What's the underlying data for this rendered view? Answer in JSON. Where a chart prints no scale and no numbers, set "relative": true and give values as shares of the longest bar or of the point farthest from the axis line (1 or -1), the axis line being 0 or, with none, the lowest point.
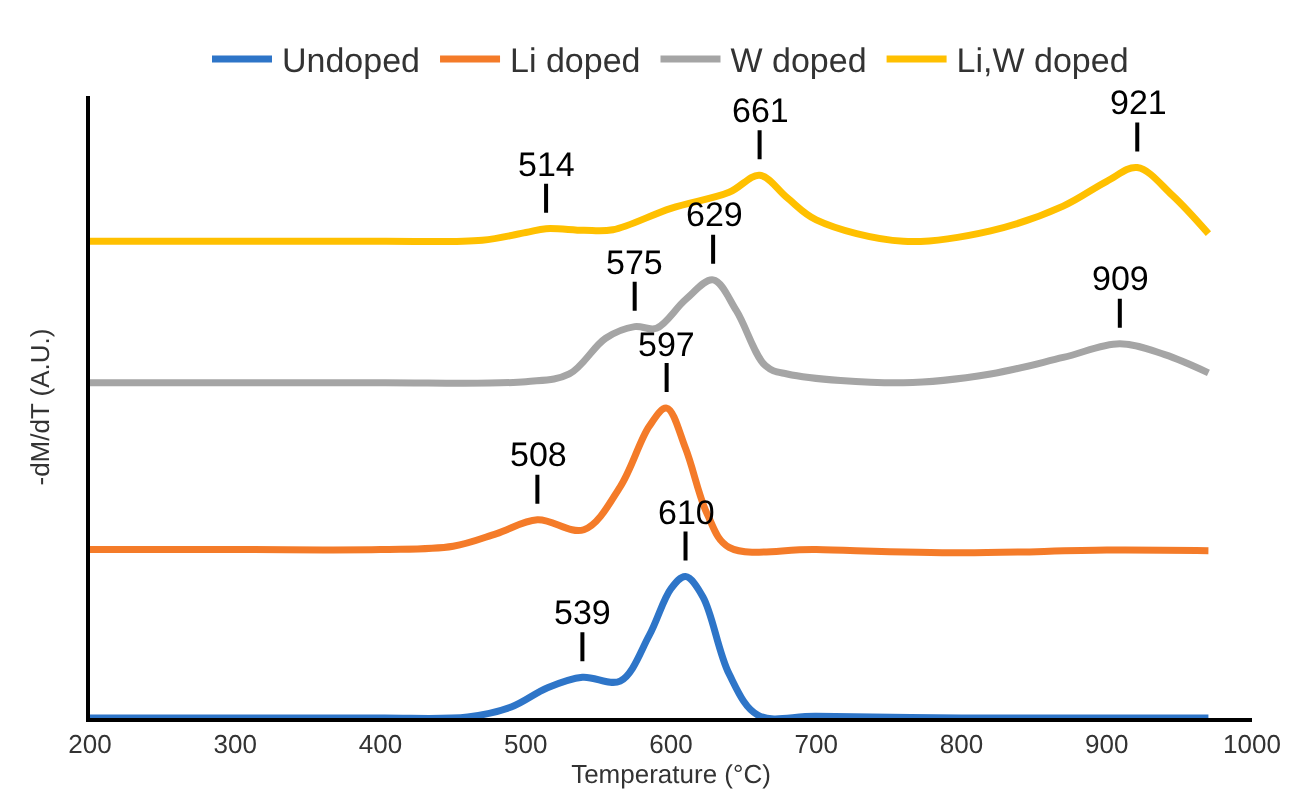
{
  "chart_data": {
    "type": "line",
    "relative": true,
    "xlabel": "Temperature (°C)",
    "ylabel": "-dM/dT (A.U.)",
    "xlim": [
      200,
      1000
    ],
    "xticks": [
      200,
      300,
      400,
      500,
      600,
      700,
      800,
      900,
      1000
    ],
    "legend": "top",
    "marker": "none",
    "line_style": "solid",
    "series": [
      {
        "name": "Undoped",
        "color": "#2e75c8",
        "x": [
          200,
          300,
          400,
          460,
          490,
          515,
          539,
          565,
          585,
          600,
          610,
          622,
          640,
          660,
          700,
          800,
          900,
          970
        ],
        "values": [
          0.0,
          0.0,
          0.0,
          0.002,
          0.02,
          0.055,
          0.074,
          0.067,
          0.15,
          0.235,
          0.257,
          0.22,
          0.08,
          0.005,
          0.003,
          0.0,
          0.0,
          0.0
        ]
      },
      {
        "name": "Li doped",
        "color": "#f47b29",
        "x": [
          200,
          300,
          400,
          450,
          480,
          508,
          540,
          565,
          585,
          597,
          610,
          625,
          640,
          700,
          800,
          900,
          970
        ],
        "values": [
          0.306,
          0.306,
          0.306,
          0.312,
          0.335,
          0.36,
          0.342,
          0.42,
          0.53,
          0.563,
          0.49,
          0.37,
          0.31,
          0.306,
          0.3,
          0.305,
          0.304
        ]
      },
      {
        "name": "W doped",
        "color": "#a5a5a5",
        "x": [
          200,
          300,
          400,
          500,
          530,
          555,
          575,
          590,
          610,
          629,
          645,
          665,
          680,
          760,
          820,
          870,
          909,
          940,
          970
        ],
        "values": [
          0.609,
          0.609,
          0.609,
          0.611,
          0.625,
          0.69,
          0.711,
          0.708,
          0.76,
          0.796,
          0.74,
          0.64,
          0.625,
          0.609,
          0.625,
          0.655,
          0.68,
          0.66,
          0.627
        ]
      },
      {
        "name": "Li,W doped",
        "color": "#ffc000",
        "x": [
          200,
          300,
          400,
          470,
          500,
          514,
          540,
          560,
          600,
          640,
          661,
          680,
          700,
          760,
          820,
          870,
          900,
          921,
          945,
          970
        ],
        "values": [
          0.866,
          0.866,
          0.866,
          0.868,
          0.882,
          0.889,
          0.886,
          0.887,
          0.926,
          0.955,
          0.986,
          0.945,
          0.905,
          0.866,
          0.885,
          0.93,
          0.975,
          1.0,
          0.95,
          0.88
        ]
      }
    ],
    "annotations": [
      {
        "text": "539",
        "x": 539,
        "y": 0.074
      },
      {
        "text": "610",
        "x": 610,
        "y": 0.257
      },
      {
        "text": "508",
        "x": 508,
        "y": 0.36
      },
      {
        "text": "597",
        "x": 597,
        "y": 0.563
      },
      {
        "text": "575",
        "x": 575,
        "y": 0.711
      },
      {
        "text": "629",
        "x": 629,
        "y": 0.796
      },
      {
        "text": "909",
        "x": 909,
        "y": 0.68
      },
      {
        "text": "514",
        "x": 514,
        "y": 0.889
      },
      {
        "text": "661",
        "x": 661,
        "y": 0.986
      },
      {
        "text": "921",
        "x": 921,
        "y": 1.0
      }
    ]
  }
}
